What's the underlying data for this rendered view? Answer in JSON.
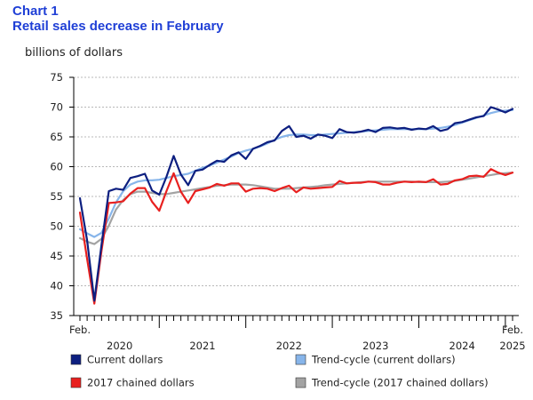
{
  "chart_data": {
    "type": "line",
    "title": "Chart 1",
    "subtitle": "Retail sales decrease in February",
    "ylabel": "billions of dollars",
    "xlabel": "",
    "ylim": [
      35,
      75
    ],
    "y_ticks": [
      35,
      40,
      45,
      50,
      55,
      60,
      65,
      70,
      75
    ],
    "x_start_label": "Feb.",
    "x_end_label": "Feb.",
    "year_labels": [
      "2020",
      "2021",
      "2022",
      "2023",
      "2024",
      "2025"
    ],
    "grid": "horizontal-dashed",
    "legend_position": "bottom",
    "x_start": "2020-02",
    "x_end": "2025-02",
    "series": [
      {
        "name": "Current dollars",
        "color": "#0d1f80",
        "values": [
          54.7,
          47.6,
          37.5,
          46.9,
          55.9,
          56.3,
          56.1,
          58.1,
          58.4,
          58.8,
          56.0,
          55.3,
          58.3,
          61.8,
          58.7,
          56.9,
          59.3,
          59.5,
          60.3,
          61.0,
          60.8,
          61.9,
          62.4,
          61.3,
          63.0,
          63.5,
          64.1,
          64.4,
          66.0,
          66.8,
          65.0,
          65.2,
          64.7,
          65.4,
          65.2,
          64.8,
          66.3,
          65.8,
          65.7,
          65.9,
          66.2,
          65.8,
          66.5,
          66.6,
          66.4,
          66.5,
          66.2,
          66.4,
          66.3,
          66.8,
          66.0,
          66.3,
          67.3,
          67.5,
          67.9,
          68.3,
          68.5,
          70.0,
          69.6,
          69.1,
          69.7
        ]
      },
      {
        "name": "Trend-cycle (current dollars)",
        "color": "#87b5ea",
        "values": [
          49.5,
          48.8,
          48.2,
          48.9,
          51.3,
          54.0,
          55.9,
          57.0,
          57.5,
          57.7,
          57.7,
          57.8,
          58.1,
          58.4,
          58.6,
          58.8,
          59.3,
          59.8,
          60.2,
          60.7,
          61.2,
          61.7,
          62.3,
          62.7,
          63.0,
          63.4,
          63.9,
          64.5,
          65.0,
          65.3,
          65.4,
          65.4,
          65.3,
          65.3,
          65.4,
          65.5,
          65.6,
          65.7,
          65.8,
          65.9,
          66.0,
          66.1,
          66.2,
          66.3,
          66.3,
          66.3,
          66.3,
          66.3,
          66.3,
          66.4,
          66.5,
          66.7,
          67.0,
          67.4,
          67.8,
          68.2,
          68.6,
          69.0,
          69.3,
          69.4,
          69.5
        ]
      },
      {
        "name": "2017 chained dollars",
        "color": "#e8201f",
        "values": [
          52.3,
          44.5,
          37.0,
          45.9,
          53.9,
          54.0,
          54.2,
          55.5,
          56.4,
          56.4,
          54.1,
          52.6,
          55.9,
          58.9,
          55.8,
          53.9,
          55.9,
          56.2,
          56.5,
          57.1,
          56.8,
          57.2,
          57.2,
          55.8,
          56.3,
          56.4,
          56.3,
          55.9,
          56.4,
          56.8,
          55.7,
          56.5,
          56.3,
          56.4,
          56.5,
          56.6,
          57.6,
          57.2,
          57.3,
          57.3,
          57.5,
          57.4,
          57.0,
          57.0,
          57.3,
          57.5,
          57.4,
          57.5,
          57.4,
          57.9,
          57.0,
          57.1,
          57.7,
          57.9,
          58.4,
          58.5,
          58.3,
          59.6,
          59.0,
          58.6,
          59.0
        ]
      },
      {
        "name": "Trend-cycle (2017 chained dollars)",
        "color": "#a3a3a3",
        "values": [
          48.0,
          47.4,
          47.0,
          47.9,
          50.1,
          52.8,
          54.4,
          55.4,
          55.8,
          55.8,
          55.6,
          55.4,
          55.4,
          55.6,
          55.8,
          56.0,
          56.2,
          56.4,
          56.6,
          56.8,
          56.9,
          57.0,
          57.0,
          57.0,
          56.9,
          56.7,
          56.5,
          56.3,
          56.3,
          56.3,
          56.4,
          56.5,
          56.6,
          56.7,
          56.9,
          57.0,
          57.1,
          57.2,
          57.3,
          57.4,
          57.5,
          57.5,
          57.5,
          57.5,
          57.5,
          57.5,
          57.5,
          57.4,
          57.4,
          57.4,
          57.4,
          57.5,
          57.6,
          57.8,
          58.0,
          58.2,
          58.4,
          58.6,
          58.8,
          58.9,
          59.0
        ]
      }
    ]
  }
}
